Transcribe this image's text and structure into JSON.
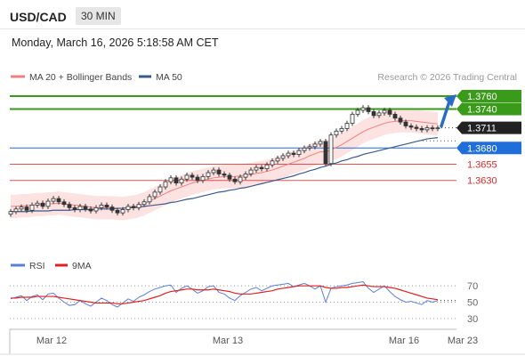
{
  "header": {
    "pair": "USD/CAD",
    "timeframe": "30 MIN",
    "datetime": "Monday, March 16, 2026 5:18:58 AM CET"
  },
  "legend": {
    "bb_label": "MA 20 + Bollinger Bands",
    "ma50_label": "MA 50",
    "bb_color": "#f08080",
    "ma50_color": "#3a5a8c"
  },
  "copyright": "Research © 2026 Trading Central",
  "chart_data": {
    "type": "line",
    "title": "",
    "price_axis": {
      "ylim": [
        1.3535,
        1.3775
      ]
    },
    "levels": [
      {
        "label": "1.3760",
        "value": 1.376,
        "kind": "resistance",
        "color": "#3a9a1a"
      },
      {
        "label": "1.3740",
        "value": 1.374,
        "kind": "resistance",
        "color": "#3a9a1a"
      },
      {
        "label": "1.3711",
        "value": 1.3711,
        "kind": "last",
        "color": "#222222"
      },
      {
        "label": "1.3680",
        "value": 1.368,
        "kind": "pivot",
        "color": "#1e6fd9"
      },
      {
        "label": "1.3655",
        "value": 1.3655,
        "kind": "support",
        "color": "#d62a2a"
      },
      {
        "label": "1.3630",
        "value": 1.363,
        "kind": "support",
        "color": "#d62a2a"
      }
    ],
    "x_ticks": [
      {
        "label": "Mar 12",
        "index": 7
      },
      {
        "label": "Mar 13",
        "index": 40
      },
      {
        "label": "Mar 16",
        "index": 73
      },
      {
        "label": "Mar 23",
        "index": 84
      }
    ],
    "price_series": [
      1.3582,
      1.3586,
      1.3589,
      1.3584,
      1.3592,
      1.3595,
      1.359,
      1.3598,
      1.3602,
      1.3597,
      1.3593,
      1.3588,
      1.3585,
      1.359,
      1.3586,
      1.3583,
      1.3588,
      1.3592,
      1.3589,
      1.3584,
      1.358,
      1.3585,
      1.359,
      1.3588,
      1.3593,
      1.3597,
      1.3605,
      1.3612,
      1.362,
      1.3628,
      1.3634,
      1.3626,
      1.3632,
      1.3638,
      1.3635,
      1.363,
      1.3636,
      1.3642,
      1.3646,
      1.364,
      1.3638,
      1.3632,
      1.3628,
      1.3635,
      1.364,
      1.3646,
      1.365,
      1.3648,
      1.3654,
      1.366,
      1.3664,
      1.3668,
      1.3672,
      1.367,
      1.3676,
      1.368,
      1.3682,
      1.3686,
      1.369,
      1.3656,
      1.37,
      1.3706,
      1.371,
      1.3718,
      1.3732,
      1.3738,
      1.3742,
      1.3736,
      1.373,
      1.3734,
      1.3738,
      1.3732,
      1.3726,
      1.372,
      1.3714,
      1.3712,
      1.371,
      1.3708,
      1.3711,
      1.371,
      1.3711
    ],
    "ma20_series": [
      1.359,
      1.359,
      1.3591,
      1.3591,
      1.3592,
      1.3593,
      1.3593,
      1.3594,
      1.3594,
      1.3595,
      1.3594,
      1.3593,
      1.3592,
      1.3591,
      1.359,
      1.3589,
      1.3588,
      1.3588,
      1.3588,
      1.3588,
      1.3587,
      1.3587,
      1.3588,
      1.3589,
      1.3591,
      1.3594,
      1.3598,
      1.3602,
      1.3606,
      1.361,
      1.3614,
      1.3617,
      1.362,
      1.3623,
      1.3626,
      1.3628,
      1.363,
      1.3632,
      1.3634,
      1.3635,
      1.3636,
      1.3636,
      1.3636,
      1.3637,
      1.3638,
      1.3639,
      1.3641,
      1.3642,
      1.3644,
      1.3646,
      1.3649,
      1.3652,
      1.3655,
      1.3658,
      1.3661,
      1.3664,
      1.3668,
      1.3671,
      1.3674,
      1.3674,
      1.3677,
      1.3681,
      1.3685,
      1.369,
      1.3695,
      1.37,
      1.3705,
      1.3709,
      1.3712,
      1.3715,
      1.3718,
      1.372,
      1.3721,
      1.3722,
      1.3722,
      1.3722,
      1.3721,
      1.372,
      1.3719,
      1.3718,
      1.3717
    ],
    "ma50_series": [
      1.3582,
      1.3582,
      1.3582,
      1.3582,
      1.3583,
      1.3583,
      1.3583,
      1.3583,
      1.3584,
      1.3584,
      1.3584,
      1.3584,
      1.3585,
      1.3585,
      1.3585,
      1.3585,
      1.3586,
      1.3586,
      1.3586,
      1.3586,
      1.3587,
      1.3587,
      1.3588,
      1.3588,
      1.3589,
      1.359,
      1.3591,
      1.3592,
      1.3593,
      1.3594,
      1.3596,
      1.3597,
      1.3599,
      1.3601,
      1.3602,
      1.3604,
      1.3606,
      1.3608,
      1.361,
      1.3612,
      1.3613,
      1.3615,
      1.3616,
      1.3618,
      1.3619,
      1.3621,
      1.3623,
      1.3625,
      1.3627,
      1.3629,
      1.3631,
      1.3633,
      1.3635,
      1.3637,
      1.364,
      1.3642,
      1.3645,
      1.3647,
      1.365,
      1.3652,
      1.3655,
      1.3657,
      1.366,
      1.3662,
      1.3665,
      1.3667,
      1.367,
      1.3672,
      1.3674,
      1.3676,
      1.3678,
      1.368,
      1.3682,
      1.3684,
      1.3686,
      1.3688,
      1.369,
      1.3692,
      1.3694,
      1.3695,
      1.3696
    ],
    "bb_width": 0.0018,
    "rsi_panel": {
      "legend_rsi": "RSI",
      "legend_ma": "9MA",
      "rsi_color": "#5b7fd6",
      "ma_color": "#e02020",
      "ylim": [
        20,
        80
      ],
      "ticks": [
        {
          "label": "70",
          "value": 70
        },
        {
          "label": "50",
          "value": 50
        },
        {
          "label": "30",
          "value": 30
        }
      ],
      "rsi_series": [
        54,
        56,
        58,
        52,
        57,
        59,
        53,
        60,
        61,
        55,
        50,
        46,
        47,
        52,
        48,
        45,
        50,
        55,
        52,
        47,
        44,
        49,
        54,
        51,
        56,
        59,
        63,
        66,
        68,
        70,
        71,
        62,
        67,
        70,
        66,
        61,
        64,
        69,
        70,
        62,
        60,
        55,
        52,
        58,
        62,
        66,
        68,
        64,
        67,
        70,
        71,
        72,
        73,
        69,
        71,
        73,
        70,
        66,
        70,
        50,
        67,
        69,
        70,
        71,
        73,
        74,
        75,
        67,
        62,
        66,
        70,
        63,
        57,
        53,
        50,
        51,
        49,
        47,
        52,
        50,
        52
      ],
      "ma_series": [
        55,
        55,
        56,
        56,
        56,
        57,
        57,
        57,
        57,
        56,
        55,
        54,
        53,
        52,
        51,
        50,
        49,
        49,
        49,
        49,
        48,
        48,
        49,
        50,
        51,
        52,
        54,
        56,
        58,
        61,
        63,
        64,
        65,
        66,
        66,
        65,
        65,
        65,
        66,
        65,
        64,
        63,
        61,
        60,
        60,
        60,
        61,
        62,
        63,
        64,
        66,
        67,
        68,
        69,
        70,
        70,
        70,
        70,
        70,
        68,
        67,
        67,
        68,
        68,
        69,
        70,
        71,
        70,
        69,
        69,
        69,
        68,
        67,
        65,
        63,
        61,
        59,
        57,
        55,
        54,
        53
      ]
    }
  }
}
